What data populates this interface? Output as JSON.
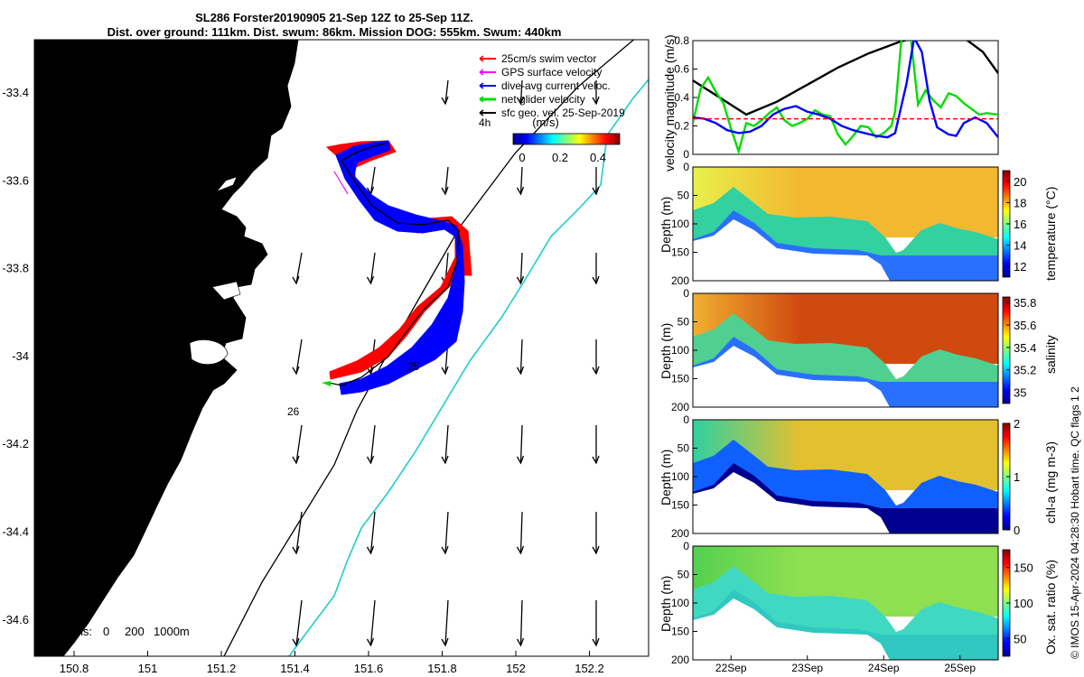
{
  "header": {
    "title_line1": "SL286 Forster20190905 21-Sep 12Z to 25-Sep 11Z.",
    "title_line2": "Dist. over ground: 111km. Dist. swum: 86km. Mission DOG: 555km. Swum: 440km"
  },
  "map": {
    "land_color": "#f9c799",
    "x_ticks": [
      "150.8",
      "151",
      "151.2",
      "151.4",
      "151.6",
      "151.8",
      "152",
      "152.2"
    ],
    "y_ticks": [
      "-33.4",
      "-33.6",
      "-33.8",
      "-34",
      "-34.2",
      "-34.4",
      "-34.6"
    ],
    "isobaths_label": "isobaths:",
    "isobath_values": [
      "0",
      "200",
      "1000m"
    ],
    "track_labels": [
      "26",
      "25"
    ],
    "time_label": "4h",
    "legend": [
      {
        "label": "25cm/s swim vector",
        "color": "#ff0000"
      },
      {
        "label": "GPS surface velocity",
        "color": "#ff00ff"
      },
      {
        "label": "dive-avg current veloc.",
        "color": "#0000ff"
      },
      {
        "label": "net glider velocity",
        "color": "#00dd00"
      },
      {
        "label": "sfc geo. vel. 25-Sep-2019",
        "color": "#000000"
      }
    ],
    "colorbar": {
      "unit": "(m/s)",
      "ticks": [
        "0",
        "0.2",
        "0.4"
      ]
    }
  },
  "chart_data": [
    {
      "type": "line",
      "ylabel": "velocity magnitude (m/s)",
      "ylim": [
        0,
        0.8
      ],
      "yticks": [
        "0",
        "0.2",
        "0.4",
        "0.6",
        "0.8"
      ],
      "x_days": [
        21.5,
        25.5
      ],
      "series": [
        {
          "color": "#000000",
          "x": [
            21.5,
            21.85,
            22.2,
            22.6,
            23.0,
            23.4,
            23.8,
            24.2,
            24.6,
            25.0,
            25.3,
            25.5
          ],
          "y": [
            0.52,
            0.4,
            0.28,
            0.37,
            0.49,
            0.61,
            0.71,
            0.79,
            0.85,
            0.84,
            0.72,
            0.57
          ]
        },
        {
          "color": "#00dd00",
          "x": [
            21.5,
            21.6,
            21.7,
            21.8,
            21.9,
            22.0,
            22.1,
            22.2,
            22.3,
            22.4,
            22.5,
            22.6,
            22.7,
            22.8,
            22.9,
            23.0,
            23.1,
            23.2,
            23.3,
            23.4,
            23.5,
            23.6,
            23.7,
            23.8,
            23.9,
            24.0,
            24.1,
            24.15,
            24.25,
            24.35,
            24.45,
            24.55,
            24.65,
            24.75,
            24.85,
            24.95,
            25.05,
            25.15,
            25.25,
            25.35,
            25.5
          ],
          "y": [
            0.22,
            0.46,
            0.54,
            0.44,
            0.36,
            0.18,
            0.02,
            0.22,
            0.2,
            0.24,
            0.29,
            0.33,
            0.24,
            0.2,
            0.22,
            0.25,
            0.31,
            0.28,
            0.27,
            0.14,
            0.07,
            0.13,
            0.2,
            0.19,
            0.12,
            0.15,
            0.2,
            0.3,
            0.92,
            0.85,
            0.35,
            0.45,
            0.38,
            0.33,
            0.43,
            0.41,
            0.36,
            0.32,
            0.28,
            0.29,
            0.28
          ]
        },
        {
          "color": "#0000ff",
          "x": [
            21.5,
            21.65,
            21.8,
            21.95,
            22.1,
            22.25,
            22.4,
            22.55,
            22.7,
            22.85,
            23.0,
            23.15,
            23.3,
            23.45,
            23.6,
            23.75,
            23.9,
            24.05,
            24.15,
            24.3,
            24.4,
            24.5,
            24.6,
            24.7,
            24.85,
            24.95,
            25.05,
            25.2,
            25.35,
            25.5
          ],
          "y": [
            0.26,
            0.25,
            0.22,
            0.17,
            0.15,
            0.16,
            0.2,
            0.28,
            0.32,
            0.34,
            0.3,
            0.28,
            0.25,
            0.2,
            0.17,
            0.15,
            0.13,
            0.12,
            0.15,
            0.5,
            0.82,
            0.72,
            0.38,
            0.19,
            0.14,
            0.13,
            0.22,
            0.26,
            0.22,
            0.12
          ]
        },
        {
          "color": "#ff0000",
          "x": [
            21.5,
            25.5
          ],
          "y": [
            0.25,
            0.25
          ]
        }
      ]
    },
    {
      "type": "heatmap",
      "ylabel": "Depth (m)",
      "colorbar_label": "temperature (°C)",
      "ylim": [
        200,
        0
      ],
      "yticks": [
        "0",
        "50",
        "100",
        "150",
        "200"
      ],
      "cticks": [
        "12",
        "14",
        "16",
        "18",
        "20"
      ],
      "crange": [
        11,
        21
      ]
    },
    {
      "type": "heatmap",
      "ylabel": "Depth (m)",
      "colorbar_label": "salinity",
      "ylim": [
        200,
        0
      ],
      "yticks": [
        "0",
        "50",
        "100",
        "150",
        "200"
      ],
      "cticks": [
        "35",
        "35.2",
        "35.4",
        "35.6",
        "35.8"
      ],
      "crange": [
        34.9,
        35.85
      ]
    },
    {
      "type": "heatmap",
      "ylabel": "Depth (m)",
      "colorbar_label": "chl-a (mg m-3)",
      "ylim": [
        200,
        0
      ],
      "yticks": [
        "0",
        "50",
        "100",
        "150",
        "200"
      ],
      "cticks": [
        "0",
        "1",
        "2"
      ],
      "crange": [
        0,
        2
      ]
    },
    {
      "type": "heatmap",
      "ylabel": "Depth (m)",
      "colorbar_label": "Ox. sat. ratio (%)",
      "ylim": [
        200,
        0
      ],
      "yticks": [
        "0",
        "50",
        "100",
        "150",
        "200"
      ],
      "cticks": [
        "50",
        "100",
        "150"
      ],
      "crange": [
        25,
        175
      ]
    }
  ],
  "time_axis": {
    "ticks": [
      "22Sep",
      "23Sep",
      "24Sep",
      "25Sep"
    ]
  },
  "footer": {
    "credit": "© IMOS 15-Apr-2024 04:28:30 Hobart time. QC flags 1  2"
  }
}
